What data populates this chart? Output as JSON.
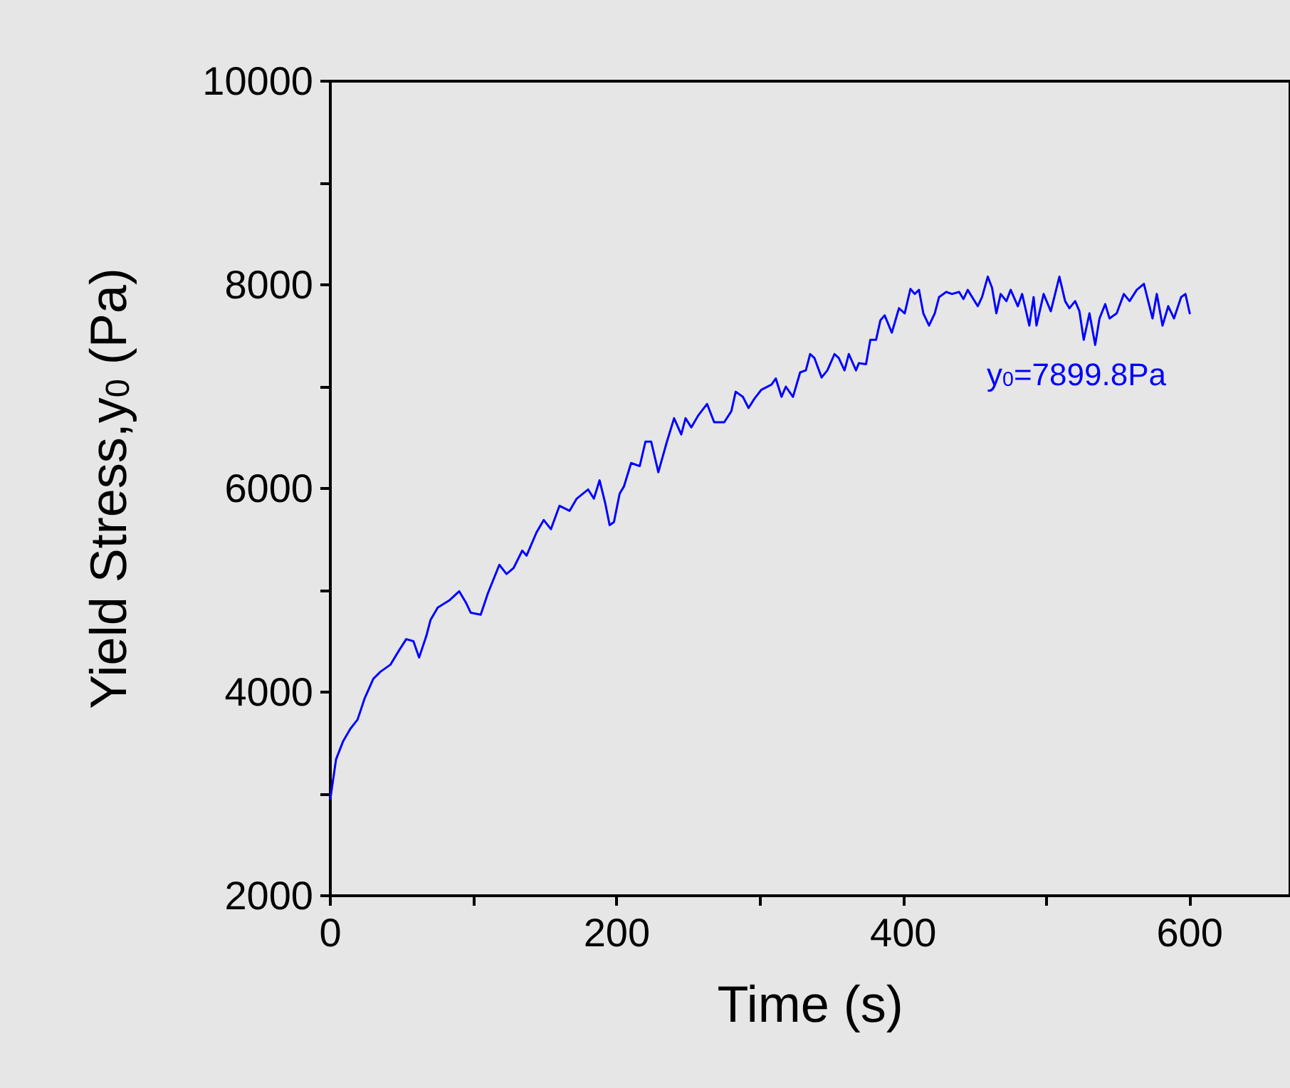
{
  "chart_data": {
    "type": "line",
    "xlabel": "Time (s)",
    "ylabel": "Yield Stress,y$_{0}$ (Pa)",
    "annotations": [
      "y$_{0}$=7899.8Pa"
    ],
    "xlim": [
      0,
      670
    ],
    "ylim": [
      2000,
      10000
    ],
    "xticks": [
      0,
      {
        "value": 100,
        "label": null
      },
      200,
      {
        "value": 300,
        "label": null
      },
      400,
      {
        "value": 500,
        "label": null
      },
      600
    ],
    "yticks": [
      2000,
      {
        "value": 3000,
        "label": null
      },
      4000,
      {
        "value": 5000,
        "label": null
      },
      6000,
      {
        "value": 7000,
        "label": null
      },
      8000,
      {
        "value": 9000,
        "label": null
      },
      10000
    ],
    "grid": false,
    "marker": "none",
    "line_style": "solid",
    "series": [
      {
        "color": "#0000ff",
        "x": [
          0,
          4,
          9,
          14,
          19,
          24,
          30,
          35,
          42,
          48,
          53,
          58,
          62,
          67,
          70,
          75,
          83,
          90,
          95,
          98,
          105,
          110,
          118,
          123,
          128,
          134,
          137,
          144,
          149,
          154,
          160,
          167,
          172,
          180,
          184,
          188,
          192,
          195,
          198,
          202,
          205,
          210,
          216,
          220,
          224,
          229,
          235,
          240,
          245,
          248,
          252,
          257,
          263,
          268,
          275,
          280,
          283,
          288,
          292,
          296,
          301,
          308,
          311,
          315,
          318,
          323,
          328,
          332,
          335,
          338,
          343,
          347,
          352,
          355,
          359,
          362,
          367,
          369,
          374,
          377,
          381,
          384,
          387,
          392,
          397,
          401,
          405,
          408,
          411,
          414,
          418,
          422,
          425,
          430,
          434,
          439,
          442,
          445,
          452,
          455,
          459,
          462,
          465,
          468,
          472,
          475,
          480,
          483,
          488,
          491,
          493,
          498,
          503,
          509,
          513,
          516,
          520,
          523,
          526,
          530,
          534,
          537,
          541,
          544,
          549,
          554,
          558,
          563,
          568,
          574,
          577,
          581,
          585,
          589,
          594,
          597,
          600
        ],
        "values": [
          2950,
          3340,
          3520,
          3640,
          3730,
          3940,
          4130,
          4200,
          4270,
          4410,
          4520,
          4500,
          4340,
          4550,
          4710,
          4830,
          4900,
          4990,
          4870,
          4780,
          4760,
          4970,
          5250,
          5160,
          5220,
          5390,
          5340,
          5570,
          5690,
          5600,
          5830,
          5780,
          5900,
          5990,
          5900,
          6080,
          5850,
          5640,
          5670,
          5950,
          6020,
          6250,
          6220,
          6460,
          6460,
          6160,
          6460,
          6690,
          6530,
          6690,
          6600,
          6720,
          6830,
          6650,
          6650,
          6760,
          6950,
          6900,
          6790,
          6880,
          6970,
          7020,
          7080,
          6900,
          7000,
          6900,
          7140,
          7160,
          7320,
          7280,
          7090,
          7160,
          7320,
          7280,
          7160,
          7320,
          7160,
          7230,
          7220,
          7460,
          7460,
          7650,
          7700,
          7530,
          7770,
          7720,
          7960,
          7910,
          7950,
          7720,
          7600,
          7720,
          7880,
          7930,
          7910,
          7930,
          7860,
          7950,
          7790,
          7880,
          8080,
          7970,
          7720,
          7910,
          7840,
          7950,
          7790,
          7910,
          7600,
          7880,
          7600,
          7910,
          7740,
          8080,
          7840,
          7770,
          7840,
          7740,
          7460,
          7720,
          7410,
          7670,
          7810,
          7670,
          7720,
          7910,
          7840,
          7950,
          8010,
          7670,
          7910,
          7600,
          7790,
          7670,
          7880,
          7910,
          7720
        ]
      }
    ]
  }
}
